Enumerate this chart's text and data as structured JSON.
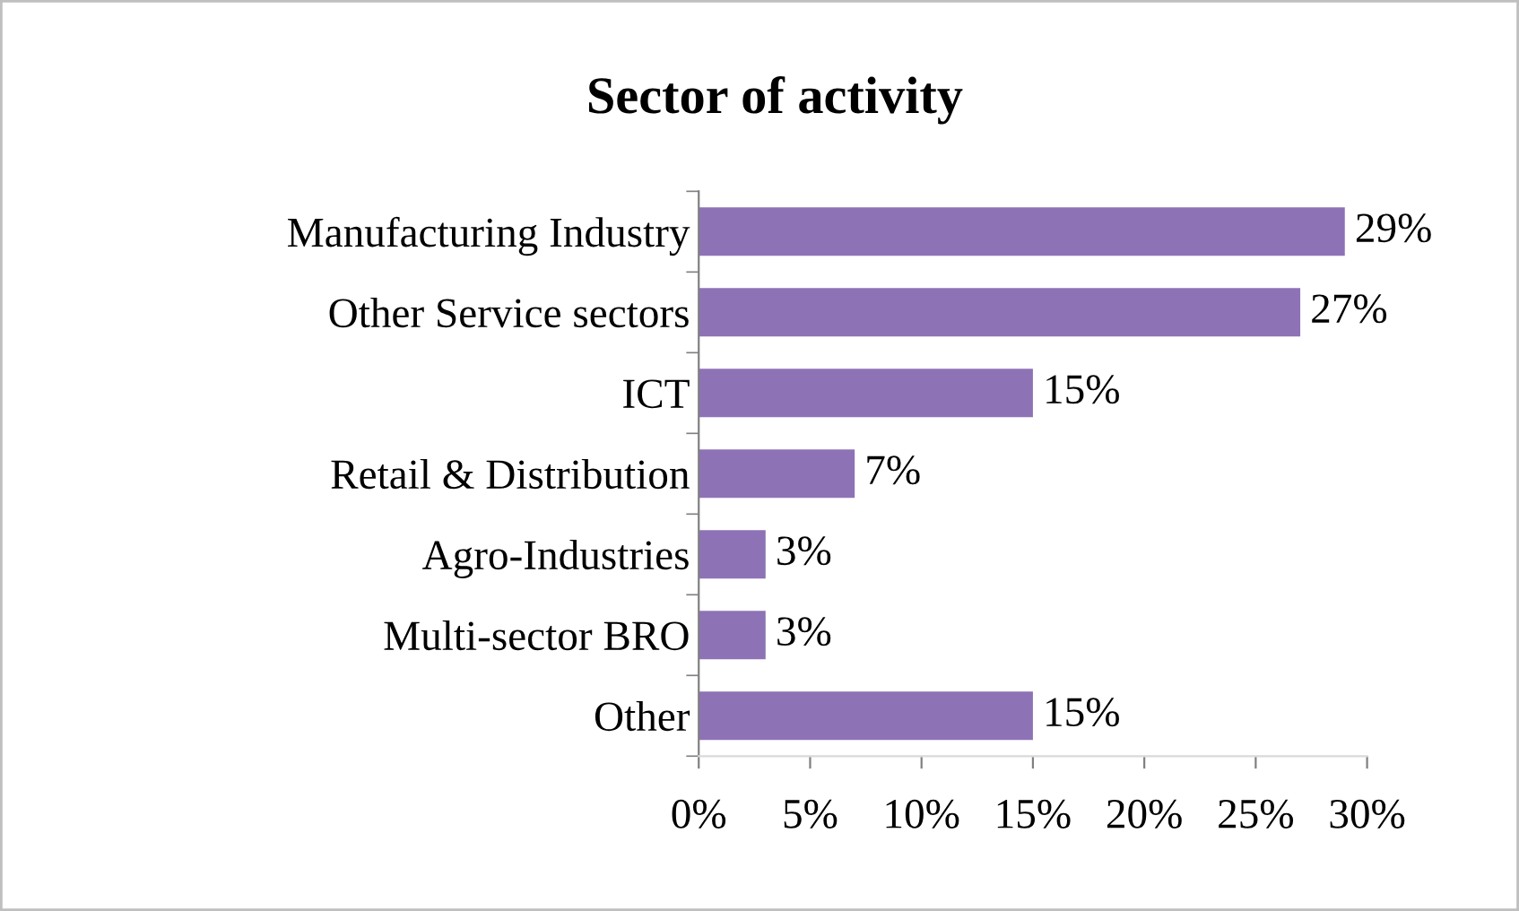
{
  "chart_data": {
    "type": "bar",
    "orientation": "horizontal",
    "title": "Sector of activity",
    "categories": [
      "Manufacturing Industry",
      "Other Service sectors",
      "ICT",
      "Retail & Distribution",
      "Agro-Industries",
      "Multi-sector BRO",
      "Other"
    ],
    "values": [
      29,
      27,
      15,
      7,
      3,
      3,
      15
    ],
    "value_labels": [
      "29%",
      "27%",
      "15%",
      "7%",
      "3%",
      "3%",
      "15%"
    ],
    "color": "#8e72b6",
    "xlim": [
      0,
      30
    ],
    "xticks": [
      {
        "value": 0,
        "label": "0%"
      },
      {
        "value": 5,
        "label": "5%"
      },
      {
        "value": 10,
        "label": "10%"
      },
      {
        "value": 15,
        "label": "15%"
      },
      {
        "value": 20,
        "label": "20%"
      },
      {
        "value": 25,
        "label": "25%"
      },
      {
        "value": 30,
        "label": "30%"
      }
    ],
    "grid": false,
    "legend": false
  }
}
